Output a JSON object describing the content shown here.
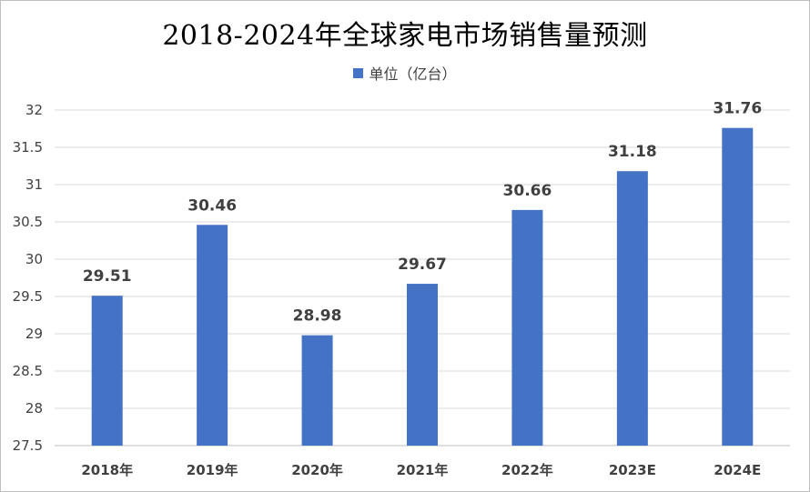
{
  "chart_data": {
    "type": "bar",
    "title": "2018-2024年全球家电市场销售量预测",
    "categories": [
      "2018年",
      "2019年",
      "2020年",
      "2021年",
      "2022年",
      "2023E",
      "2024E"
    ],
    "series": [
      {
        "name": "单位（亿台）",
        "values": [
          29.51,
          30.46,
          28.98,
          29.67,
          30.66,
          31.18,
          31.76
        ],
        "color": "#4472c4"
      }
    ],
    "data_labels": [
      "29.51",
      "30.46",
      "28.98",
      "29.67",
      "30.66",
      "31.18",
      "31.76"
    ],
    "xlabel": "",
    "ylabel": "",
    "ylim": [
      27.5,
      32
    ],
    "y_ticks": [
      27.5,
      28,
      28.5,
      29,
      29.5,
      30,
      30.5,
      31,
      31.5,
      32
    ],
    "y_tick_labels": [
      "27.5",
      "28",
      "28.5",
      "29",
      "29.5",
      "30",
      "30.5",
      "31",
      "31.5",
      "32"
    ],
    "grid": true,
    "legend_position": "top"
  }
}
